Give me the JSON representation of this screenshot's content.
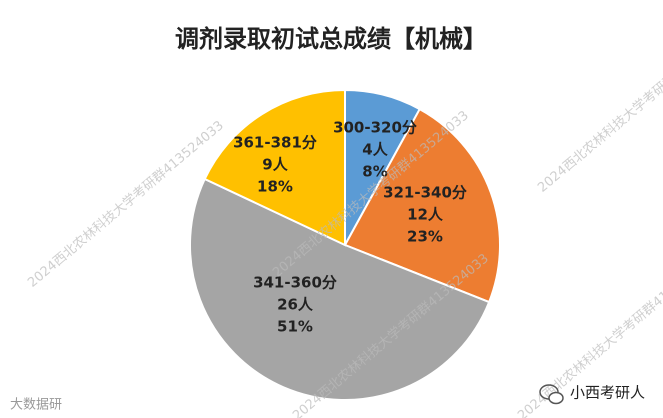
{
  "chart_data": {
    "type": "pie",
    "title": "调剂录取初试总成绩【机械】",
    "categories": [
      "300-320分",
      "321-340分",
      "341-360分",
      "361-381分"
    ],
    "values": [
      8,
      23,
      51,
      18
    ],
    "value_labels": [
      "8%",
      "23%",
      "51%",
      "18%"
    ],
    "counts": [
      4,
      12,
      26,
      9
    ],
    "count_labels": [
      "4人",
      "12人",
      "26人",
      "9人"
    ],
    "colors": [
      "#5b9bd5",
      "#ed7d31",
      "#a5a5a5",
      "#ffc000"
    ]
  },
  "watermark": "2024西北农林科技大学考研群413524033",
  "account": "小西考研人",
  "corner_mark": "大数据研"
}
